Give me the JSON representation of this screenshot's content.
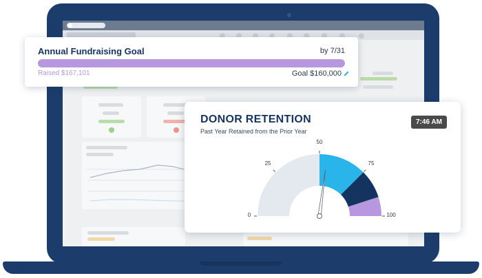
{
  "goal": {
    "title": "Annual Fundraising Goal",
    "deadline": "by 7/31",
    "raised_label": "Raised $167,101",
    "goal_label": "Goal $160,000",
    "progress_fraction": 1.0,
    "bar_color": "#b797e0"
  },
  "retention": {
    "title": "DONOR RETENTION",
    "subtitle": "Past Year Retained from the Prior Year",
    "time": "7:46 AM",
    "needle_value": 54,
    "gauge": {
      "min": 0,
      "max": 100,
      "ticks": [
        "0",
        "25",
        "50",
        "75",
        "100"
      ],
      "segments": [
        {
          "from": 0,
          "to": 50,
          "color": "#e4e9ef"
        },
        {
          "from": 50,
          "to": 75,
          "color": "#29b4ea"
        },
        {
          "from": 75,
          "to": 90,
          "color": "#14345f"
        },
        {
          "from": 90,
          "to": 100,
          "color": "#b797e0"
        }
      ]
    }
  },
  "icons": {
    "edit": "pencil-icon",
    "device": "laptop"
  },
  "colors": {
    "laptop": "#1c3d6b",
    "title_navy": "#14345f",
    "accent_purple": "#b797e0",
    "accent_blue": "#29b4ea"
  }
}
